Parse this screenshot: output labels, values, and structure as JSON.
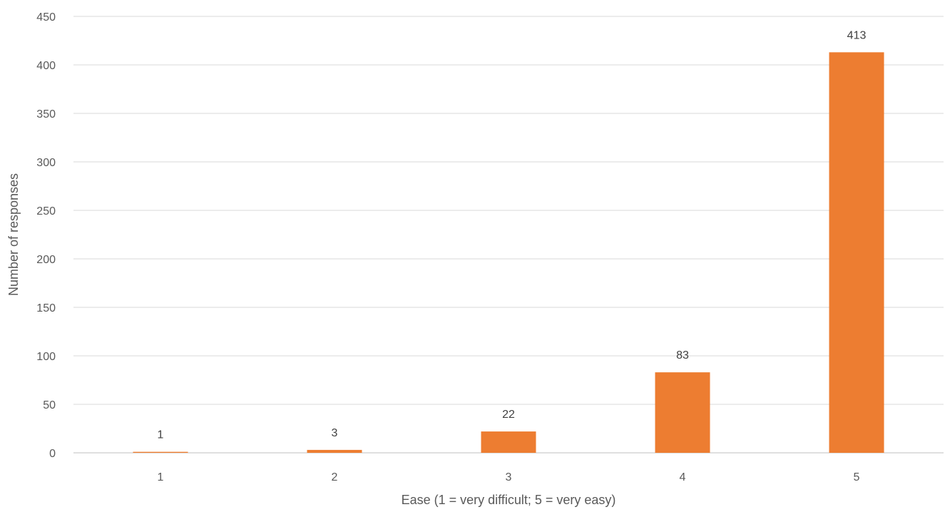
{
  "chart_data": {
    "type": "bar",
    "title": "",
    "xlabel": "Ease (1 = very difficult; 5 = very easy)",
    "ylabel": "Number of responses",
    "categories": [
      "1",
      "2",
      "3",
      "4",
      "5"
    ],
    "values": [
      1,
      3,
      22,
      83,
      413
    ],
    "data_labels": [
      "1",
      "3",
      "22",
      "83",
      "413"
    ],
    "ylim": [
      0,
      450
    ],
    "yticks": [
      "0",
      "50",
      "100",
      "150",
      "200",
      "250",
      "300",
      "350",
      "400",
      "450"
    ],
    "grid": true,
    "legend": "none",
    "bar_color": "#ED7D31",
    "gridline_color": "#D9D9D9"
  }
}
